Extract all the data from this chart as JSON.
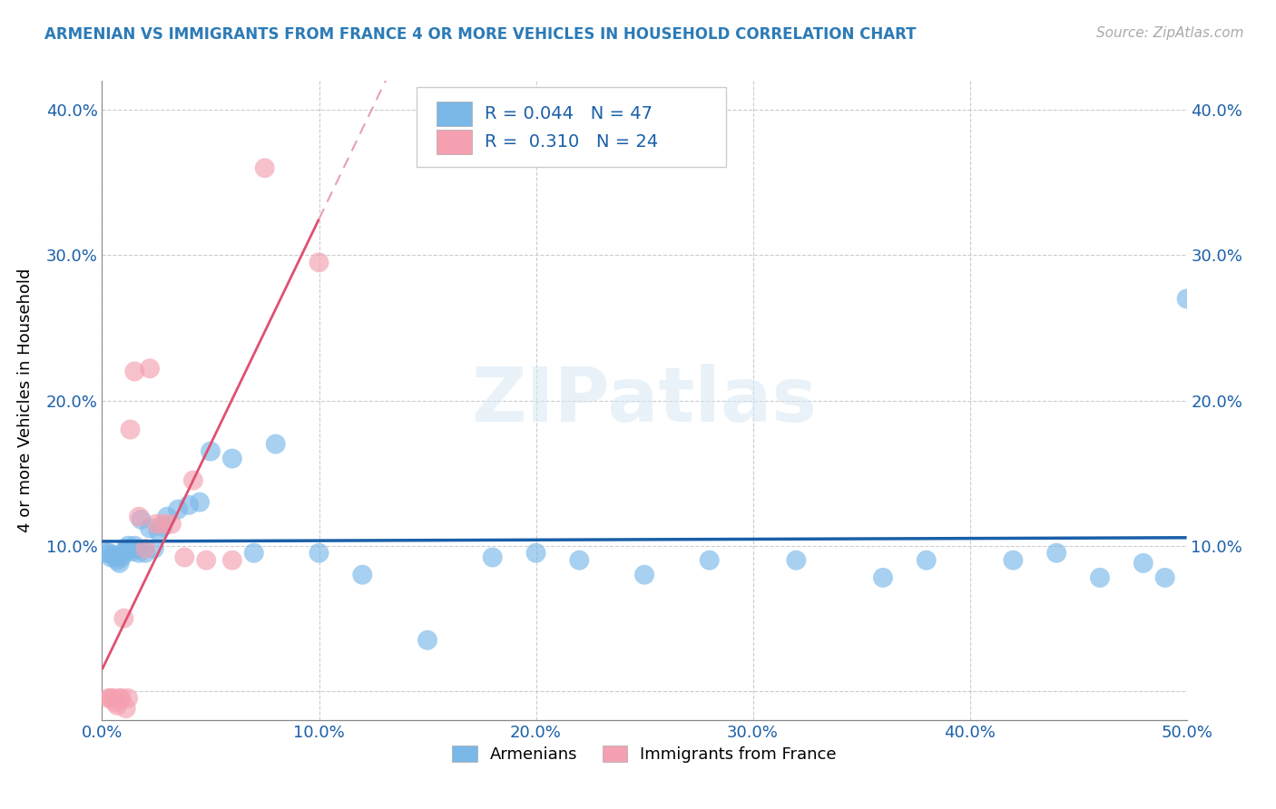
{
  "title": "ARMENIAN VS IMMIGRANTS FROM FRANCE 4 OR MORE VEHICLES IN HOUSEHOLD CORRELATION CHART",
  "source": "Source: ZipAtlas.com",
  "ylabel": "4 or more Vehicles in Household",
  "xlim": [
    0.0,
    0.5
  ],
  "ylim": [
    -0.02,
    0.42
  ],
  "plot_ylim": [
    -0.02,
    0.42
  ],
  "armenian_R": 0.044,
  "armenian_N": 47,
  "france_R": 0.31,
  "france_N": 24,
  "blue_color": "#7ab8e8",
  "pink_color": "#f4a0b0",
  "blue_line_color": "#1a5fa8",
  "pink_line_color": "#e05070",
  "dashed_line_color": "#e8a0b0",
  "watermark": "ZIPatlas",
  "legend_label_1": "Armenians",
  "legend_label_2": "Immigrants from France",
  "arm_x": [
    0.002,
    0.003,
    0.004,
    0.005,
    0.006,
    0.007,
    0.008,
    0.009,
    0.01,
    0.011,
    0.012,
    0.013,
    0.014,
    0.015,
    0.016,
    0.017,
    0.018,
    0.02,
    0.022,
    0.024,
    0.026,
    0.028,
    0.03,
    0.035,
    0.04,
    0.045,
    0.05,
    0.06,
    0.07,
    0.08,
    0.1,
    0.12,
    0.15,
    0.18,
    0.2,
    0.22,
    0.25,
    0.28,
    0.32,
    0.36,
    0.38,
    0.42,
    0.44,
    0.46,
    0.48,
    0.49,
    0.5
  ],
  "arm_y": [
    0.095,
    0.095,
    0.092,
    0.094,
    0.092,
    0.09,
    0.088,
    0.092,
    0.095,
    0.098,
    0.1,
    0.098,
    0.096,
    0.1,
    0.098,
    0.095,
    0.118,
    0.095,
    0.112,
    0.098,
    0.11,
    0.113,
    0.12,
    0.125,
    0.128,
    0.13,
    0.165,
    0.16,
    0.095,
    0.17,
    0.095,
    0.08,
    0.035,
    0.092,
    0.095,
    0.09,
    0.08,
    0.09,
    0.09,
    0.078,
    0.09,
    0.09,
    0.095,
    0.078,
    0.088,
    0.078,
    0.27
  ],
  "fra_x": [
    0.003,
    0.004,
    0.005,
    0.006,
    0.007,
    0.008,
    0.009,
    0.01,
    0.011,
    0.012,
    0.013,
    0.015,
    0.017,
    0.02,
    0.022,
    0.025,
    0.028,
    0.032,
    0.038,
    0.042,
    0.048,
    0.06,
    0.075,
    0.1
  ],
  "fra_y": [
    -0.005,
    -0.005,
    -0.005,
    -0.008,
    -0.01,
    -0.005,
    -0.005,
    0.05,
    -0.012,
    -0.005,
    0.18,
    0.22,
    0.12,
    0.098,
    0.222,
    0.115,
    0.115,
    0.115,
    0.092,
    0.145,
    0.09,
    0.09,
    0.36,
    0.295
  ]
}
